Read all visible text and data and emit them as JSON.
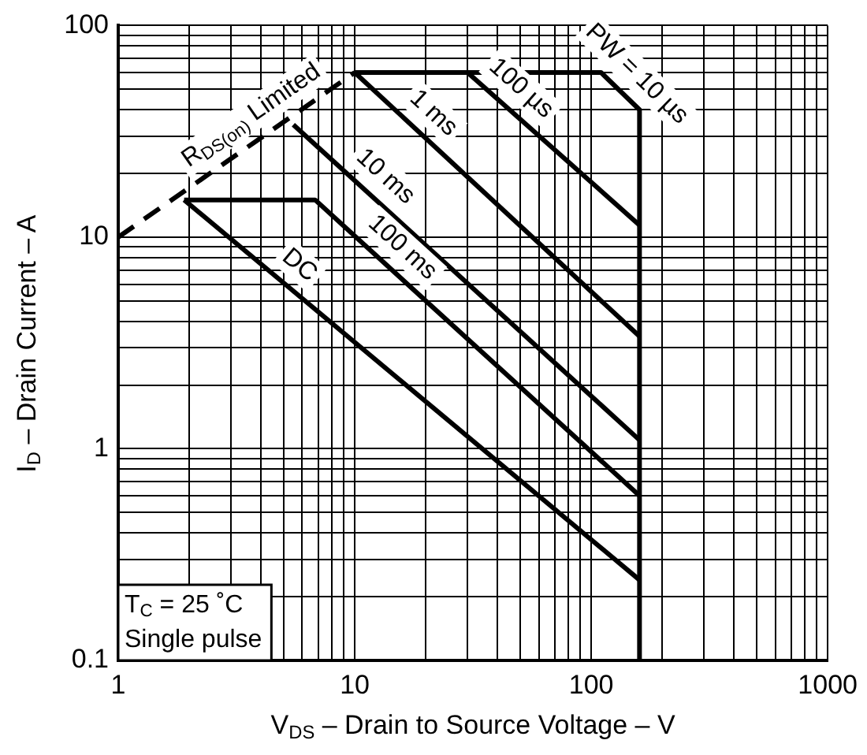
{
  "chart_data": {
    "type": "line",
    "xlabel": "V$_{DS}$ – Drain to Source Voltage – V",
    "ylabel": "I$_{D}$ – Drain Current – A",
    "log": "xy",
    "grid": true,
    "legend": false,
    "marker": "none",
    "xlim": [
      1,
      1000
    ],
    "ylim": [
      0.1,
      100
    ],
    "xticks": [
      1,
      {
        "value": 2,
        "label": null
      },
      {
        "value": 3,
        "label": null
      },
      {
        "value": 4,
        "label": null
      },
      {
        "value": 5,
        "label": null
      },
      {
        "value": 6,
        "label": null
      },
      {
        "value": 7,
        "label": null
      },
      {
        "value": 8,
        "label": null
      },
      {
        "value": 9,
        "label": null
      },
      10,
      {
        "value": 20,
        "label": null
      },
      {
        "value": 30,
        "label": null
      },
      {
        "value": 40,
        "label": null
      },
      {
        "value": 50,
        "label": null
      },
      {
        "value": 60,
        "label": null
      },
      {
        "value": 70,
        "label": null
      },
      {
        "value": 80,
        "label": null
      },
      {
        "value": 90,
        "label": null
      },
      100,
      {
        "value": 200,
        "label": null
      },
      {
        "value": 300,
        "label": null
      },
      {
        "value": 400,
        "label": null
      },
      {
        "value": 500,
        "label": null
      },
      {
        "value": 600,
        "label": null
      },
      {
        "value": 700,
        "label": null
      },
      {
        "value": 800,
        "label": null
      },
      {
        "value": 900,
        "label": null
      },
      1000
    ],
    "yticks": [
      0.1,
      {
        "value": 0.2,
        "label": null
      },
      {
        "value": 0.3,
        "label": null
      },
      {
        "value": 0.4,
        "label": null
      },
      {
        "value": 0.5,
        "label": null
      },
      {
        "value": 0.6,
        "label": null
      },
      {
        "value": 0.7,
        "label": null
      },
      {
        "value": 0.8,
        "label": null
      },
      {
        "value": 0.9,
        "label": null
      },
      1,
      {
        "value": 2,
        "label": null
      },
      {
        "value": 3,
        "label": null
      },
      {
        "value": 4,
        "label": null
      },
      {
        "value": 5,
        "label": null
      },
      {
        "value": 6,
        "label": null
      },
      {
        "value": 7,
        "label": null
      },
      {
        "value": 8,
        "label": null
      },
      {
        "value": 9,
        "label": null
      },
      10,
      {
        "value": 20,
        "label": null
      },
      {
        "value": 30,
        "label": null
      },
      {
        "value": 40,
        "label": null
      },
      {
        "value": 50,
        "label": null
      },
      {
        "value": 60,
        "label": null
      },
      {
        "value": 70,
        "label": null
      },
      {
        "value": 80,
        "label": null
      },
      {
        "value": 90,
        "label": null
      },
      100
    ],
    "series": [
      {
        "name": "R$_{DS(on)}$ Limited",
        "color": "#000000",
        "line_style": "dashed",
        "x": [
          1,
          10
        ],
        "values": [
          10,
          60
        ]
      },
      {
        "name": "PW = 10 µs",
        "color": "#000000",
        "x": [
          10,
          110,
          160,
          160
        ],
        "values": [
          60,
          60,
          40,
          0.1
        ]
      },
      {
        "name": "100 µs",
        "color": "#000000",
        "x": [
          30,
          160
        ],
        "values": [
          60,
          11.4
        ]
      },
      {
        "name": "1 ms",
        "color": "#000000",
        "x": [
          10,
          160
        ],
        "values": [
          60,
          3.4
        ]
      },
      {
        "name": "10 ms",
        "color": "#000000",
        "x": [
          5.5,
          160
        ],
        "values": [
          34,
          1.1
        ]
      },
      {
        "name": "100 ms",
        "color": "#000000",
        "x": [
          1.9,
          6.8,
          160
        ],
        "values": [
          15,
          15,
          0.6
        ]
      },
      {
        "name": "DC",
        "color": "#000000",
        "x": [
          1.9,
          160
        ],
        "values": [
          15,
          0.24
        ]
      }
    ],
    "annotations": [
      "T$_{C}$ = 25 ˚C",
      "Single pulse"
    ]
  }
}
